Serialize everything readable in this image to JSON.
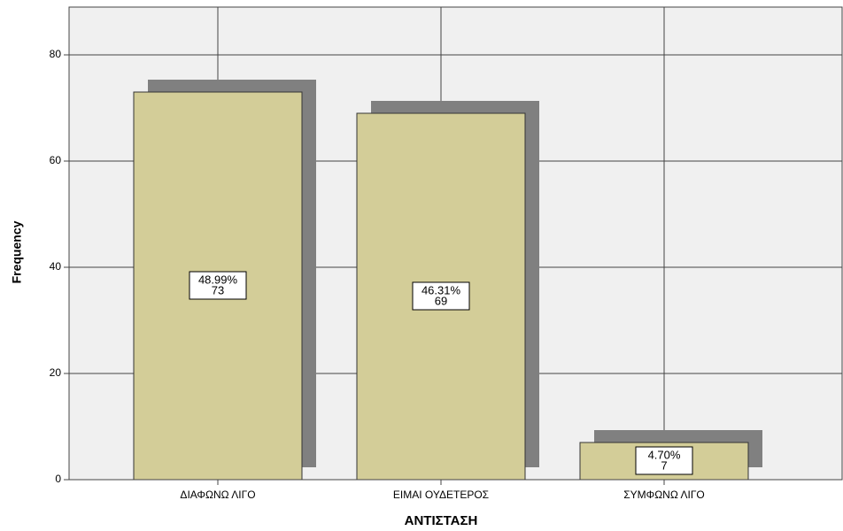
{
  "chart_data": {
    "type": "bar",
    "categories": [
      "ΔΙΑΦΩΝΩ ΛΙΓΟ",
      "ΕΙΜΑΙ ΟΥΔΕΤΕΡΟΣ",
      "ΣΥΜΦΩΝΩ ΛΙΓΟ"
    ],
    "values": [
      73,
      69,
      7
    ],
    "percent_labels": [
      "48.99%",
      "46.31%",
      "4.70%"
    ],
    "color": "#d3cd98",
    "shadow_color": "#808080",
    "x_label": "ΑΝΤΙΣΤΑΣΗ",
    "y_label": "Frequency",
    "ylim": [
      0,
      89
    ],
    "yticks": [
      0,
      20,
      40,
      60,
      80
    ],
    "grid": true
  }
}
